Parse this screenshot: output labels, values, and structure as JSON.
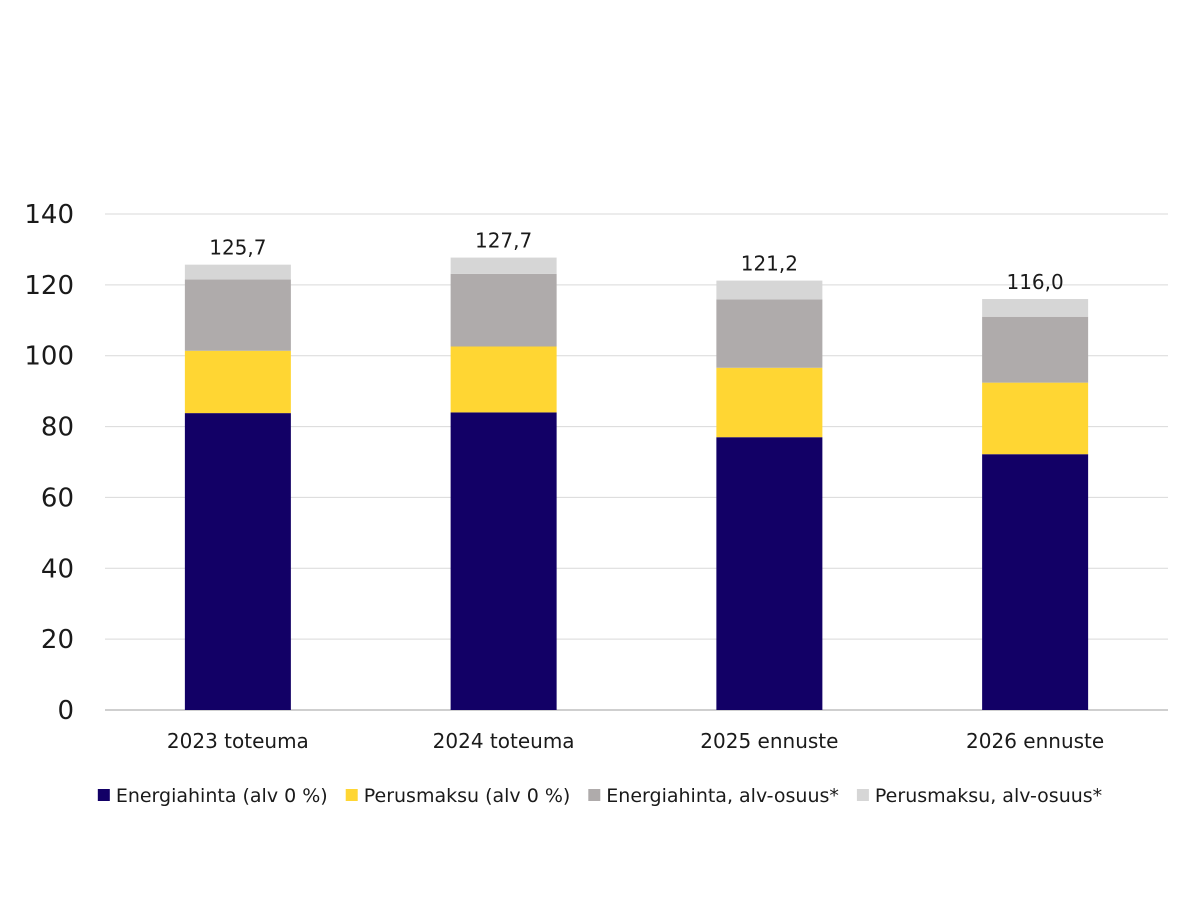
{
  "chart_data": {
    "type": "bar",
    "stacked": true,
    "categories": [
      "2023 toteuma",
      "2024 toteuma",
      "2025 ennuste",
      "2026 ennuste"
    ],
    "series": [
      {
        "name": "Energiahinta (alv 0 %)",
        "color": "#120066",
        "values": [
          83.8,
          84.0,
          77.0,
          72.2
        ]
      },
      {
        "name": "Perusmaksu (alv 0 %)",
        "color": "#ffd633",
        "values": [
          17.6,
          18.6,
          19.6,
          20.2
        ]
      },
      {
        "name": "Energiahinta, alv-osuus*",
        "color": "#afabab",
        "values": [
          20.1,
          20.5,
          19.3,
          18.6
        ]
      },
      {
        "name": "Perusmaksu, alv-osuus*",
        "color": "#d6d6d6",
        "values": [
          4.2,
          4.6,
          5.3,
          5.0
        ]
      }
    ],
    "totals": [
      "125,7",
      "127,7",
      "121,2",
      "116,0"
    ],
    "ylim": [
      0,
      140
    ],
    "yticks": [
      0,
      20,
      40,
      60,
      80,
      100,
      120,
      140
    ],
    "grid": true,
    "legend_position": "bottom",
    "title": "",
    "xlabel": "",
    "ylabel": ""
  }
}
